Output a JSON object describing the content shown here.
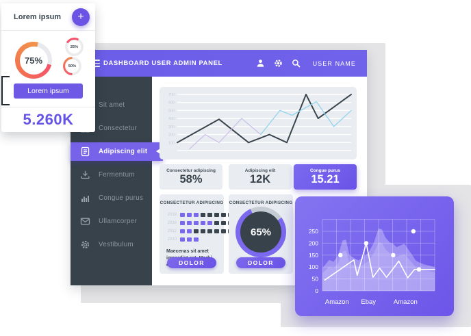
{
  "header": {
    "title": "DASHBOARD USER ADMIN PANEL",
    "user_name": "USER NAME"
  },
  "floating_card": {
    "title": "Lorem ipsum",
    "plus_label": "+",
    "donut_large": {
      "value": "75%",
      "pct": 75
    },
    "donut_small_1": {
      "value": "25%",
      "pct": 25
    },
    "donut_small_2": {
      "value": "50%",
      "pct": 50
    },
    "button_label": "Lorem ipsum",
    "metric": "5.260K"
  },
  "sidebar": {
    "items": [
      {
        "label": "Sit amet",
        "active": false
      },
      {
        "label": "Consectetur",
        "active": false
      },
      {
        "label": "Adipiscing elit",
        "active": true
      },
      {
        "label": "Fermentum",
        "active": false
      },
      {
        "label": "Congue purus",
        "active": false
      },
      {
        "label": "Ullamcorper",
        "active": false
      },
      {
        "label": "Vestibulum",
        "active": false
      }
    ]
  },
  "stats": [
    {
      "label": "Consectetur adipiscing",
      "value": "58%",
      "variant": "light"
    },
    {
      "label": "Adipiscing elit",
      "value": "12K",
      "variant": "light"
    },
    {
      "label": "Congue purus",
      "value": "15.21",
      "variant": "purple"
    }
  ],
  "matrix_card": {
    "title": "CONSECTETUR ADIPISCING",
    "rows": [
      {
        "year": "2018",
        "purple": 3,
        "dark": 5
      },
      {
        "year": "2016",
        "purple": 5,
        "dark": 3
      },
      {
        "year": "2012",
        "purple": 2,
        "dark": 6
      },
      {
        "year": "2010",
        "purple": 3,
        "dark": 0
      }
    ],
    "description": "Maecenas sit amet imperdiet est. Morbi eu tincidunt.",
    "button": "DOLOR"
  },
  "donut_card": {
    "title": "CONSECTETUR ADIPISCING",
    "value": "65%",
    "pct": 65,
    "ring_pct": 78,
    "button": "DOLOR"
  },
  "chart_data": [
    {
      "id": "overview-line-chart",
      "type": "line",
      "ylim": [
        0,
        700
      ],
      "ylabels": [
        100,
        200,
        300,
        400,
        500,
        600,
        700
      ],
      "grid": true,
      "legend": "none",
      "series": [
        {
          "name": "dark",
          "color": "#3a444d",
          "width": 2,
          "points": [
            [
              0,
              100
            ],
            [
              24,
              390
            ],
            [
              41,
              100
            ],
            [
              53,
              200
            ],
            [
              63,
              100
            ],
            [
              74,
              700
            ],
            [
              81,
              400
            ],
            [
              100,
              700
            ]
          ]
        },
        {
          "name": "lavender",
          "color": "#cdc0ea",
          "width": 1.3,
          "points": [
            [
              7,
              20
            ],
            [
              16,
              200
            ],
            [
              24,
              100
            ],
            [
              37,
              400
            ],
            [
              48,
              200
            ]
          ]
        },
        {
          "name": "blue",
          "color": "#92d4ec",
          "width": 1.3,
          "points": [
            [
              48,
              200
            ],
            [
              59,
              500
            ],
            [
              66,
              440
            ],
            [
              80,
              610
            ],
            [
              90,
              300
            ],
            [
              100,
              500
            ]
          ]
        }
      ]
    },
    {
      "id": "sales-area-chart",
      "type": "area",
      "ylim": [
        0,
        300
      ],
      "yticks": [
        0,
        50,
        100,
        150,
        200,
        250
      ],
      "xlabels": [
        {
          "label": "Amazon",
          "pos": 13
        },
        {
          "label": "Ebay",
          "pos": 41
        },
        {
          "label": "Amazon",
          "pos": 74
        }
      ],
      "area": [
        [
          0,
          95
        ],
        [
          6,
          130
        ],
        [
          10,
          122
        ],
        [
          14,
          150
        ],
        [
          18,
          212
        ],
        [
          21,
          215
        ],
        [
          24,
          150
        ],
        [
          28,
          138
        ],
        [
          32,
          128
        ],
        [
          36,
          140
        ],
        [
          41,
          160
        ],
        [
          46,
          205
        ],
        [
          50,
          262
        ],
        [
          53,
          258
        ],
        [
          56,
          225
        ],
        [
          60,
          203
        ],
        [
          63,
          198
        ],
        [
          66,
          183
        ],
        [
          70,
          192
        ],
        [
          73,
          198
        ],
        [
          77,
          170
        ],
        [
          80,
          150
        ],
        [
          83,
          128
        ],
        [
          86,
          120
        ],
        [
          90,
          112
        ],
        [
          95,
          106
        ],
        [
          100,
          100
        ]
      ],
      "line": [
        [
          2,
          45
        ],
        [
          28,
          130
        ],
        [
          31,
          65
        ],
        [
          39,
          200
        ],
        [
          45,
          57
        ],
        [
          51,
          95
        ],
        [
          57,
          57
        ],
        [
          63,
          93
        ],
        [
          68,
          125
        ],
        [
          76,
          55
        ],
        [
          82,
          90
        ],
        [
          100,
          90
        ]
      ],
      "dots": [
        [
          16,
          150
        ],
        [
          39,
          200
        ],
        [
          63,
          150
        ],
        [
          81,
          250
        ],
        [
          86,
          90
        ]
      ]
    }
  ],
  "colors": {
    "purple_primary": "#6b5de8",
    "purple_button": "#6e59e6",
    "sidebar_bg": "#37424b",
    "card_bg": "#e9edf1",
    "accent_red": "#f4536b",
    "accent_orange": "#f0964b",
    "metric_purple": "#6554e6",
    "bg_gray": "#e4e4e6",
    "matrix_purple": "#7b68ee",
    "matrix_dark": "#3a444d",
    "line_dark": "#3a444d",
    "line_lavender": "#cdc0ea",
    "line_blue": "#92d4ec"
  }
}
